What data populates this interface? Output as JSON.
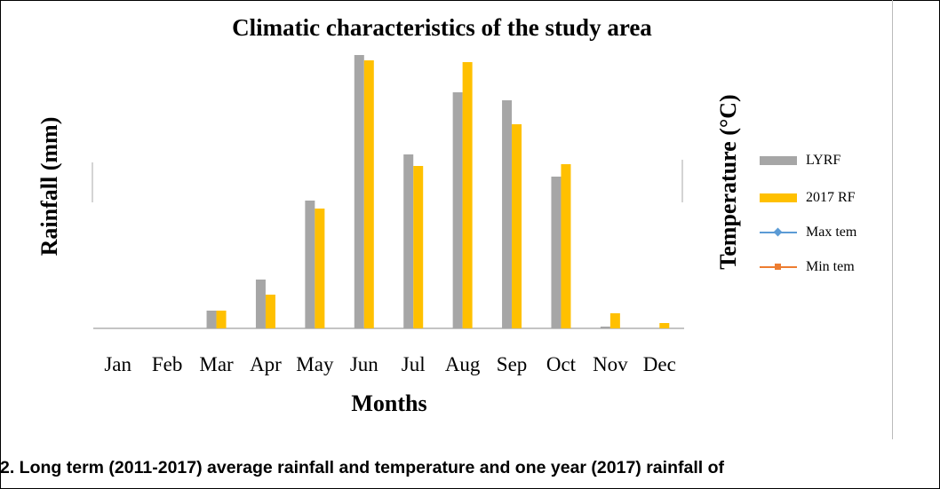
{
  "chart_data": {
    "type": "bar",
    "title": "Climatic characteristics of the study area",
    "xlabel": "Months",
    "ylabel": "Rainfall (mm)",
    "y2label": "Temperature (°C)",
    "categories": [
      "Jan",
      "Feb",
      "Mar",
      "Apr",
      "May",
      "Jun",
      "Jul",
      "Aug",
      "Sep",
      "Oct",
      "Nov",
      "Dec"
    ],
    "ylim": [
      0,
      310
    ],
    "grid": false,
    "legend_position": "right",
    "series": [
      {
        "name": "LYRF",
        "color": "#a6a6a6",
        "values": [
          0,
          0,
          20,
          55,
          144,
          308,
          196,
          266,
          257,
          171,
          2,
          0
        ]
      },
      {
        "name": "2017 RF",
        "color": "#ffc000",
        "values": [
          0,
          0,
          20,
          38,
          135,
          302,
          183,
          300,
          230,
          185,
          17,
          6
        ]
      }
    ],
    "line_series": [
      {
        "name": "Max tem",
        "color": "#5b9bd5",
        "marker": "diamond"
      },
      {
        "name": "Min tem",
        "color": "#ed7d31",
        "marker": "square"
      }
    ]
  },
  "caption": "2. Long term (2011-2017) average rainfall and temperature and one year (2017) rainfall of"
}
